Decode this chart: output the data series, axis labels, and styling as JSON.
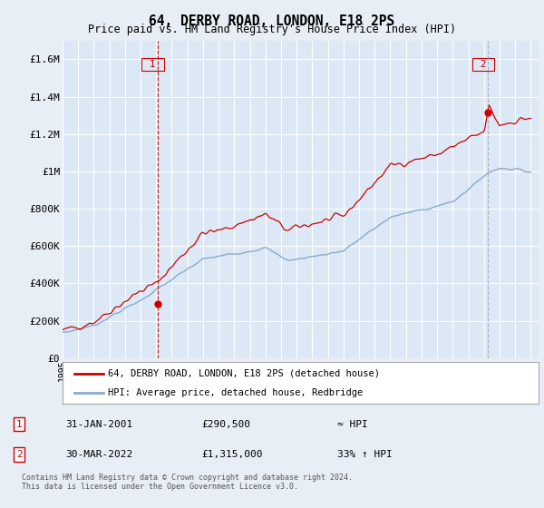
{
  "title": "64, DERBY ROAD, LONDON, E18 2PS",
  "subtitle": "Price paid vs. HM Land Registry's House Price Index (HPI)",
  "ylim": [
    0,
    1700000
  ],
  "yticks": [
    0,
    200000,
    400000,
    600000,
    800000,
    1000000,
    1200000,
    1400000,
    1600000
  ],
  "ytick_labels": [
    "£0",
    "£200K",
    "£400K",
    "£600K",
    "£800K",
    "£1M",
    "£1.2M",
    "£1.4M",
    "£1.6M"
  ],
  "x_start_year": 1995,
  "x_end_year": 2025,
  "legend_line1": "64, DERBY ROAD, LONDON, E18 2PS (detached house)",
  "legend_line2": "HPI: Average price, detached house, Redbridge",
  "annotation1_label": "1",
  "annotation1_date": "31-JAN-2001",
  "annotation1_price": "£290,500",
  "annotation1_hpi": "≈ HPI",
  "annotation1_year": 2001.08,
  "annotation1_value": 290500,
  "annotation2_label": "2",
  "annotation2_date": "30-MAR-2022",
  "annotation2_price": "£1,315,000",
  "annotation2_hpi": "33% ↑ HPI",
  "annotation2_year": 2022.25,
  "annotation2_value": 1315000,
  "line_color": "#cc0000",
  "hpi_color": "#88aacc",
  "ann1_vline_color": "#cc0000",
  "ann2_vline_color": "#8899aa",
  "bg_color": "#e8eef5",
  "plot_bg_color": "#dce8f5",
  "grid_color": "#ffffff",
  "footer_text": "Contains HM Land Registry data © Crown copyright and database right 2024.\nThis data is licensed under the Open Government Licence v3.0."
}
